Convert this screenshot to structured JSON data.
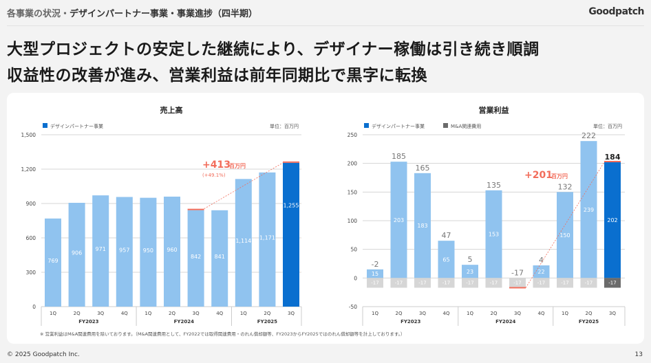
{
  "header": {
    "section": "各事業の状況・",
    "subtitle": "デザインパートナー事業・事業進捗（四半期）",
    "logo": "Goodpatch"
  },
  "headline": [
    "大型プロジェクトの安定した継続により、デザイナー稼働は引き続き順調",
    "収益性の改善が進み、営業利益は前年同期比で黒字に転換"
  ],
  "colors": {
    "light_bar": "#90c3ef",
    "accent_bar": "#0a6fcf",
    "ma_cost": "#d6d6d6",
    "ma_cost_current": "#6b6b6b",
    "highlight": "#f26d5b"
  },
  "chart_data": [
    {
      "type": "bar",
      "title": "売上高",
      "unit": "単位：百万円",
      "legend": [
        "デザインパートナー事業"
      ],
      "quarters": [
        "1Q",
        "2Q",
        "3Q",
        "4Q",
        "1Q",
        "2Q",
        "3Q",
        "4Q",
        "1Q",
        "2Q",
        "3Q"
      ],
      "fiscal_years": [
        {
          "label": "FY2023",
          "span": 4
        },
        {
          "label": "FY2024",
          "span": 4
        },
        {
          "label": "FY2025",
          "span": 3
        }
      ],
      "values": [
        769,
        906,
        971,
        957,
        950,
        960,
        842,
        841,
        1114,
        1171,
        1255
      ],
      "value_labels": [
        "769",
        "906",
        "971",
        "957",
        "950",
        "960",
        "842",
        "841",
        "1,114",
        "1,171",
        "1,255"
      ],
      "yticks": [
        "0",
        "300",
        "600",
        "900",
        "1,200",
        "1,500"
      ],
      "ylim": [
        0,
        1500
      ],
      "annotation": {
        "change": "+413",
        "unit": "百万円",
        "pct": "(+49.1%)",
        "from_index": 6,
        "to_index": 10
      }
    },
    {
      "type": "bar",
      "title": "営業利益",
      "unit": "単位：百万円",
      "legend": [
        "デザインパートナー事業",
        "M&A関連費用"
      ],
      "quarters": [
        "1Q",
        "2Q",
        "3Q",
        "4Q",
        "1Q",
        "2Q",
        "3Q",
        "4Q",
        "1Q",
        "2Q",
        "3Q"
      ],
      "fiscal_years": [
        {
          "label": "FY2023",
          "span": 4
        },
        {
          "label": "FY2024",
          "span": 4
        },
        {
          "label": "FY2025",
          "span": 3
        }
      ],
      "series": [
        {
          "name": "デザインパートナー事業",
          "values": [
            15,
            203,
            183,
            65,
            23,
            153,
            0,
            22,
            150,
            239,
            202
          ]
        },
        {
          "name": "M&A関連費用",
          "values": [
            -17,
            -17,
            -17,
            -17,
            -17,
            -17,
            -17,
            -17,
            -17,
            -17,
            -17
          ]
        }
      ],
      "totals": [
        -2,
        185,
        165,
        47,
        5,
        135,
        -17,
        4,
        132,
        222,
        184
      ],
      "yticks": [
        "-50",
        "0",
        "50",
        "100",
        "150",
        "200",
        "250"
      ],
      "ylim": [
        -50,
        250
      ],
      "annotation": {
        "change": "+201",
        "unit": "百万円",
        "from_index": 6,
        "to_index": 10
      }
    }
  ],
  "footnote": "※ 営業利益はM&A関連費用を除いております。（M&A関連費用として、FY2022では取得関連費用・のれん償却額等、FY2023からFY2025ではのれん償却額等を計上しております。）",
  "footer": {
    "copyright": "© 2025 Goodpatch Inc.",
    "page": "13"
  }
}
